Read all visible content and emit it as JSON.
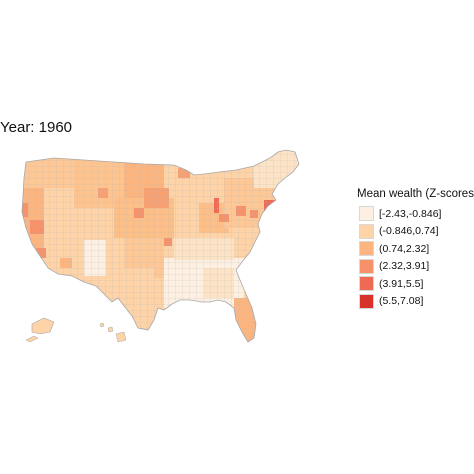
{
  "title": "Year: 1960",
  "legend": {
    "title": "Mean wealth (Z-scores)",
    "items": [
      {
        "label": "[-2.43,-0.846]",
        "color": "#fdf0e2"
      },
      {
        "label": "(-0.846,0.74]",
        "color": "#fdd3a7"
      },
      {
        "label": "(0.74,2.32]",
        "color": "#fdb57f"
      },
      {
        "label": "(2.32,3.91]",
        "color": "#f7916a"
      },
      {
        "label": "(3.91,5.5]",
        "color": "#ef6a55"
      },
      {
        "label": "(5.5,7.08]",
        "color": "#d8322a"
      }
    ]
  },
  "map": {
    "region": "Contiguous United States, Alaska and Hawaii (county level)",
    "border_color": "#b4b4b4"
  }
}
